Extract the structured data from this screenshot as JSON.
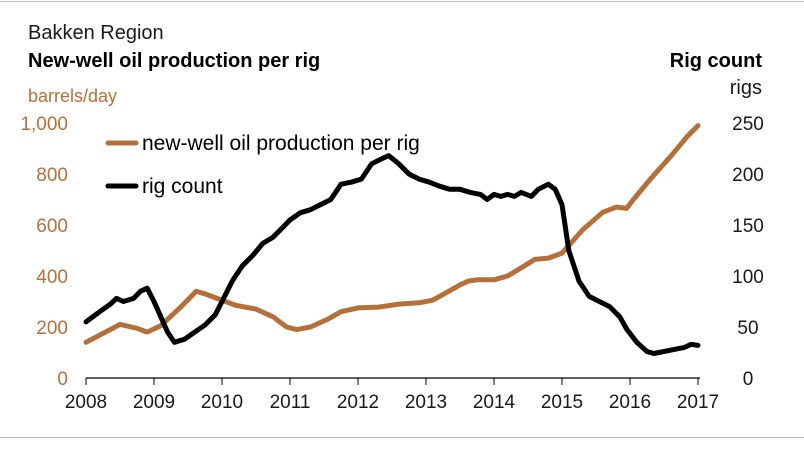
{
  "header": {
    "region": "Bakken Region",
    "left_title": "New-well oil production per rig",
    "right_title": "Rig count",
    "left_unit": "barrels/day",
    "right_unit": "rigs"
  },
  "colors": {
    "production": "#b5703a",
    "rigs": "#000000",
    "left_axis_text": "#b5703a"
  },
  "chart_data": {
    "type": "line",
    "title": "New-well oil production per rig",
    "xlabel": "",
    "x_ticks": [
      "2008",
      "2009",
      "2010",
      "2011",
      "2012",
      "2013",
      "2014",
      "2015",
      "2016",
      "2017"
    ],
    "xlim": [
      2008,
      2017
    ],
    "y_left": {
      "label": "barrels/day",
      "lim": [
        0,
        1000
      ],
      "ticks": [
        "0",
        "200",
        "400",
        "600",
        "800",
        "1,000"
      ],
      "tick_values": [
        0,
        200,
        400,
        600,
        800,
        1000
      ]
    },
    "y_right": {
      "label": "rigs",
      "lim": [
        0,
        250
      ],
      "ticks": [
        "0",
        "50",
        "100",
        "150",
        "200",
        "250"
      ],
      "tick_values": [
        0,
        50,
        100,
        150,
        200,
        250
      ]
    },
    "legend": {
      "placement": "top-left"
    },
    "grid": false,
    "series": [
      {
        "name": "new-well oil production per rig",
        "axis": "left",
        "x": [
          2008.0,
          2008.25,
          2008.5,
          2008.75,
          2008.9,
          2009.1,
          2009.4,
          2009.62,
          2009.75,
          2009.95,
          2010.2,
          2010.5,
          2010.75,
          2010.95,
          2011.1,
          2011.3,
          2011.55,
          2011.75,
          2012.0,
          2012.3,
          2012.6,
          2012.9,
          2013.1,
          2013.3,
          2013.5,
          2013.62,
          2013.75,
          2014.0,
          2014.2,
          2014.45,
          2014.6,
          2014.8,
          2015.0,
          2015.3,
          2015.6,
          2015.8,
          2015.95,
          2016.05,
          2016.3,
          2016.6,
          2016.85,
          2017.0
        ],
        "y": [
          140,
          175,
          210,
          195,
          180,
          205,
          280,
          340,
          330,
          310,
          285,
          270,
          240,
          200,
          190,
          200,
          230,
          260,
          275,
          278,
          290,
          295,
          305,
          335,
          365,
          380,
          385,
          385,
          400,
          440,
          465,
          470,
          490,
          580,
          650,
          670,
          665,
          700,
          780,
          870,
          950,
          990
        ]
      },
      {
        "name": "rig count",
        "axis": "right",
        "x": [
          2008.0,
          2008.2,
          2008.35,
          2008.45,
          2008.55,
          2008.7,
          2008.8,
          2008.9,
          2009.0,
          2009.1,
          2009.2,
          2009.3,
          2009.45,
          2009.6,
          2009.75,
          2009.9,
          2010.0,
          2010.15,
          2010.3,
          2010.45,
          2010.6,
          2010.75,
          2010.9,
          2011.0,
          2011.15,
          2011.3,
          2011.45,
          2011.6,
          2011.75,
          2011.9,
          2012.05,
          2012.2,
          2012.35,
          2012.45,
          2012.6,
          2012.75,
          2012.9,
          2013.05,
          2013.2,
          2013.35,
          2013.5,
          2013.65,
          2013.8,
          2013.9,
          2014.0,
          2014.1,
          2014.2,
          2014.3,
          2014.4,
          2014.55,
          2014.65,
          2014.8,
          2014.9,
          2015.0,
          2015.1,
          2015.25,
          2015.4,
          2015.55,
          2015.7,
          2015.85,
          2015.95,
          2016.1,
          2016.25,
          2016.35,
          2016.5,
          2016.65,
          2016.8,
          2016.9,
          2017.0
        ],
        "y": [
          55,
          65,
          72,
          78,
          75,
          78,
          85,
          88,
          75,
          60,
          45,
          35,
          38,
          45,
          52,
          62,
          75,
          95,
          110,
          120,
          132,
          138,
          148,
          155,
          162,
          165,
          170,
          175,
          190,
          192,
          195,
          210,
          215,
          218,
          210,
          200,
          195,
          192,
          188,
          185,
          185,
          182,
          180,
          175,
          180,
          178,
          180,
          178,
          182,
          178,
          185,
          190,
          185,
          170,
          125,
          95,
          80,
          75,
          70,
          60,
          48,
          35,
          26,
          24,
          26,
          28,
          30,
          33,
          32
        ]
      }
    ]
  }
}
